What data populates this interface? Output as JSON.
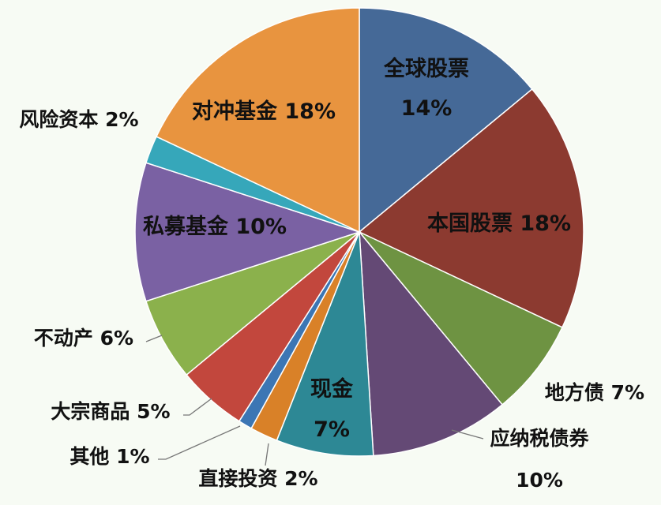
{
  "chart_data": {
    "type": "pie",
    "title": "",
    "slices": [
      {
        "name": "全球股票",
        "value": 14,
        "label": "14%",
        "color": "#456997"
      },
      {
        "name": "本国股票",
        "value": 18,
        "label": "18%",
        "color": "#8c3a30"
      },
      {
        "name": "地方债",
        "value": 7,
        "label": "7%",
        "color": "#6e9342"
      },
      {
        "name": "应纳税债券",
        "value": 10,
        "label": "10%",
        "color": "#644975"
      },
      {
        "name": "现金",
        "value": 7,
        "label": "7%",
        "color": "#2d8895"
      },
      {
        "name": "直接投资",
        "value": 2,
        "label": "2%",
        "color": "#d98128"
      },
      {
        "name": "其他",
        "value": 1,
        "label": "1%",
        "color": "#3c76b4"
      },
      {
        "name": "大宗商品",
        "value": 5,
        "label": "5%",
        "color": "#c2473d"
      },
      {
        "name": "不动产",
        "value": 6,
        "label": "6%",
        "color": "#8bb14c"
      },
      {
        "name": "私募基金",
        "value": 10,
        "label": "10%",
        "color": "#7a61a3"
      },
      {
        "name": "风险资本",
        "value": 2,
        "label": "2%",
        "color": "#36a7ba"
      },
      {
        "name": "对冲基金",
        "value": 18,
        "label": "18%",
        "color": "#e8943f"
      }
    ]
  }
}
